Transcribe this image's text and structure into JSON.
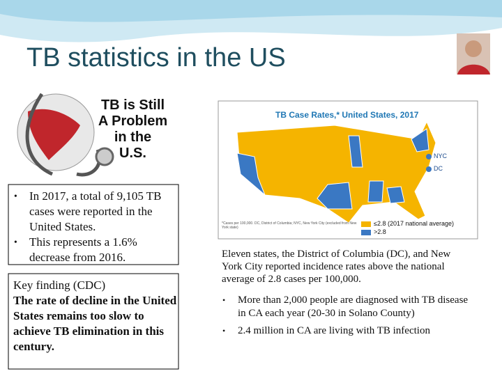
{
  "header": {
    "title": "TB statistics in the US"
  },
  "graphic": {
    "lines": [
      "TB is Still",
      "A Problem",
      "in the",
      "U.S."
    ]
  },
  "left_box": {
    "bullets": [
      "In 2017, a total of 9,105 TB cases were reported in the United States.",
      "This represents a 1.6% decrease from 2016."
    ]
  },
  "key_box": {
    "heading": "Key finding (CDC)",
    "text": "The rate of decline in the United States remains too slow to achieve TB elimination in this century."
  },
  "map": {
    "title": "TB Case Rates,* United States, 2017",
    "labels": [
      "NYC",
      "DC"
    ],
    "legend": [
      "≤2.8 (2017 national average)",
      ">2.8"
    ],
    "footnote": "*Cases per 100,000. DC, District of Columbia; NYC, New York City (excluded from New York state)"
  },
  "right": {
    "paragraph": "Eleven states, the District of Columbia (DC), and New York City reported incidence rates above the national average of 2.8 cases per 100,000.",
    "bullets": [
      "More than 2,000 people are diagnosed with TB disease in CA each year (20-30 in Solano County)",
      "2.4 million in CA are living with TB infection"
    ]
  }
}
